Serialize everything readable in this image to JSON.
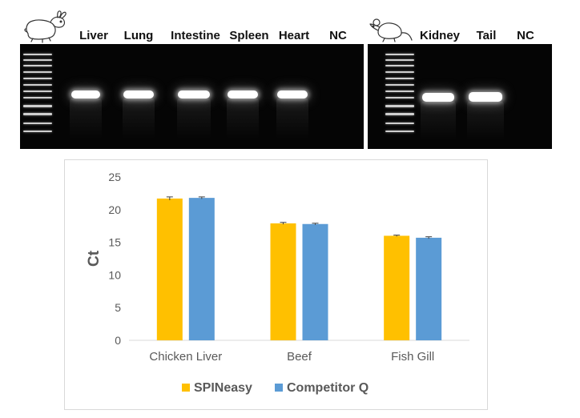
{
  "gel_figure": {
    "left_panel": {
      "animal_icon": "rabbit-icon",
      "lanes": [
        {
          "label": "Liver",
          "band": true
        },
        {
          "label": "Lung",
          "band": true
        },
        {
          "label": "Intestine",
          "band": true
        },
        {
          "label": "Spleen",
          "band": true
        },
        {
          "label": "Heart",
          "band": true
        },
        {
          "label": "NC",
          "band": false
        }
      ]
    },
    "right_panel": {
      "animal_icon": "mouse-icon",
      "lanes": [
        {
          "label": "Kidney",
          "band": true
        },
        {
          "label": "Tail",
          "band": true
        },
        {
          "label": "NC",
          "band": false
        }
      ]
    },
    "colors": {
      "gel_background": "#050505",
      "band": "#ffffff"
    }
  },
  "chart_data": {
    "type": "bar",
    "categories": [
      "Chicken Liver",
      "Beef",
      "Fish Gill"
    ],
    "series": [
      {
        "name": "SPINeasy",
        "color": "#FFC000",
        "values": [
          21.7,
          17.9,
          16.0
        ],
        "errors": [
          0.25,
          0.15,
          0.1
        ]
      },
      {
        "name": "Competitor Q",
        "color": "#5B9BD5",
        "values": [
          21.8,
          17.8,
          15.7
        ],
        "errors": [
          0.15,
          0.12,
          0.15
        ]
      }
    ],
    "title": "",
    "xlabel": "",
    "ylabel": "Ct",
    "ylim": [
      0,
      25
    ],
    "yticks": [
      0,
      5,
      10,
      15,
      20,
      25
    ],
    "grid": false,
    "legend_position": "bottom"
  }
}
